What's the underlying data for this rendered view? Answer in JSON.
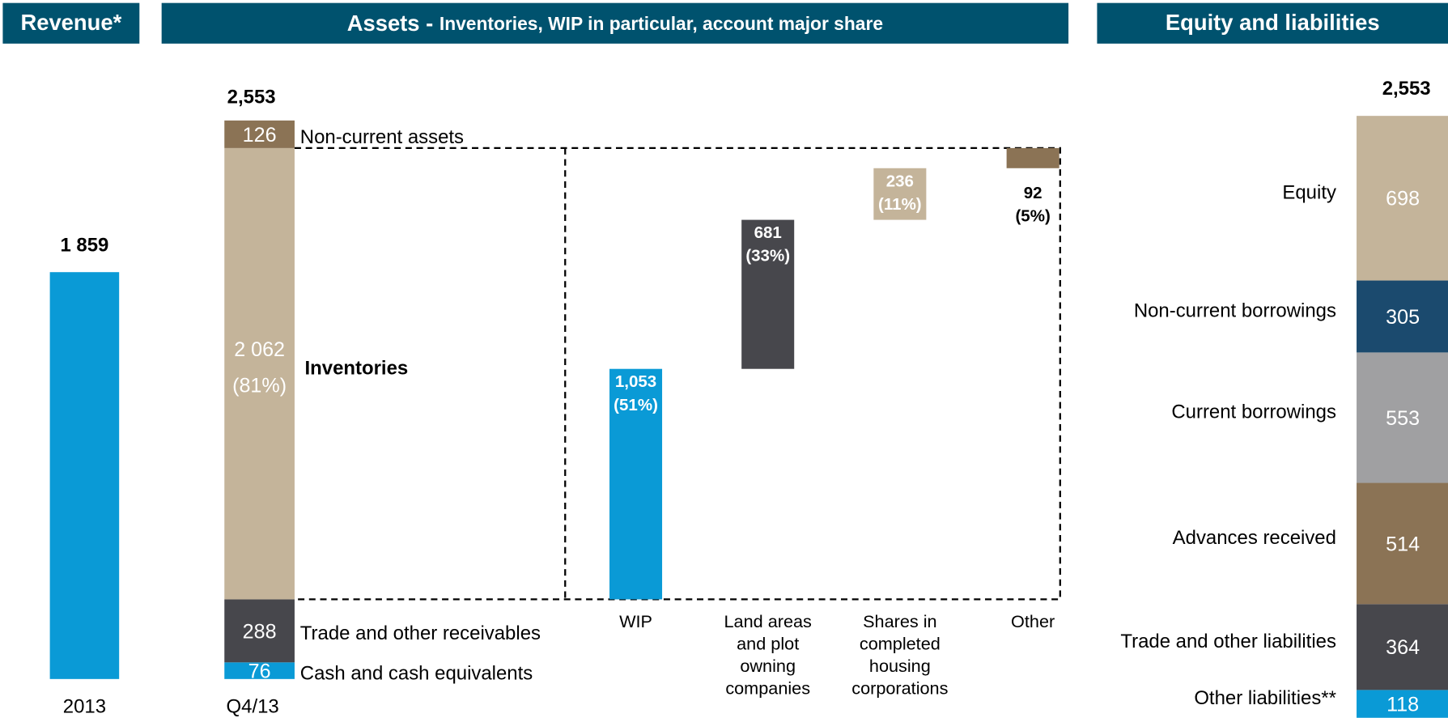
{
  "chart_data": [
    {
      "type": "bar",
      "title": "Revenue*",
      "categories": [
        "2013"
      ],
      "values": [
        1859
      ],
      "value_labels": [
        "1 859"
      ],
      "color": "#0a9ad6"
    },
    {
      "type": "stacked_waterfall",
      "title": "Assets -",
      "subtitle": "Inventories, WIP in particular, account major share",
      "categories": [
        "Q4/13"
      ],
      "total": 2553,
      "total_label": "2,553",
      "series": [
        {
          "name": "Non-current assets",
          "color": "#8b7355",
          "values": [
            126
          ]
        },
        {
          "name": "Inventories",
          "color": "#c4b49a",
          "values": [
            2062
          ],
          "value_labels": [
            "2 062"
          ],
          "percent_labels": [
            "(81%)"
          ]
        },
        {
          "name": "Trade and other receivables",
          "color": "#47474c",
          "values": [
            288
          ]
        },
        {
          "name": "Cash and cash equivalents",
          "color": "#0a9ad6",
          "values": [
            76
          ]
        }
      ],
      "breakdown": {
        "categories": [
          "WIP",
          "Land areas\nand plot\nowning\ncompanies",
          "Shares in\ncompleted\nhousing\ncorporations",
          "Other"
        ],
        "values": [
          1053,
          681,
          236,
          92
        ],
        "value_labels": [
          "1,053",
          "681",
          "236",
          "92"
        ],
        "percent_labels": [
          "(51%)",
          "(33%)",
          "(11%)",
          "(5%)"
        ],
        "colors": [
          "#0a9ad6",
          "#47474c",
          "#c4b49a",
          "#8b7355"
        ]
      }
    },
    {
      "type": "stacked_bar",
      "title": "Equity and liabilities",
      "total": 2553,
      "total_label": "2,553",
      "series": [
        {
          "name": "Equity",
          "color": "#c4b49a",
          "values": [
            698
          ]
        },
        {
          "name": "Non-current borrowings",
          "color": "#1b4a6e",
          "values": [
            305
          ]
        },
        {
          "name": "Current borrowings",
          "color": "#a0a0a2",
          "values": [
            553
          ]
        },
        {
          "name": "Advances received",
          "color": "#8b7355",
          "values": [
            514
          ]
        },
        {
          "name": "Trade and other liabilities",
          "color": "#47474c",
          "values": [
            364
          ]
        },
        {
          "name": "Other liabilities**",
          "color": "#0a9ad6",
          "values": [
            118
          ]
        }
      ]
    }
  ]
}
